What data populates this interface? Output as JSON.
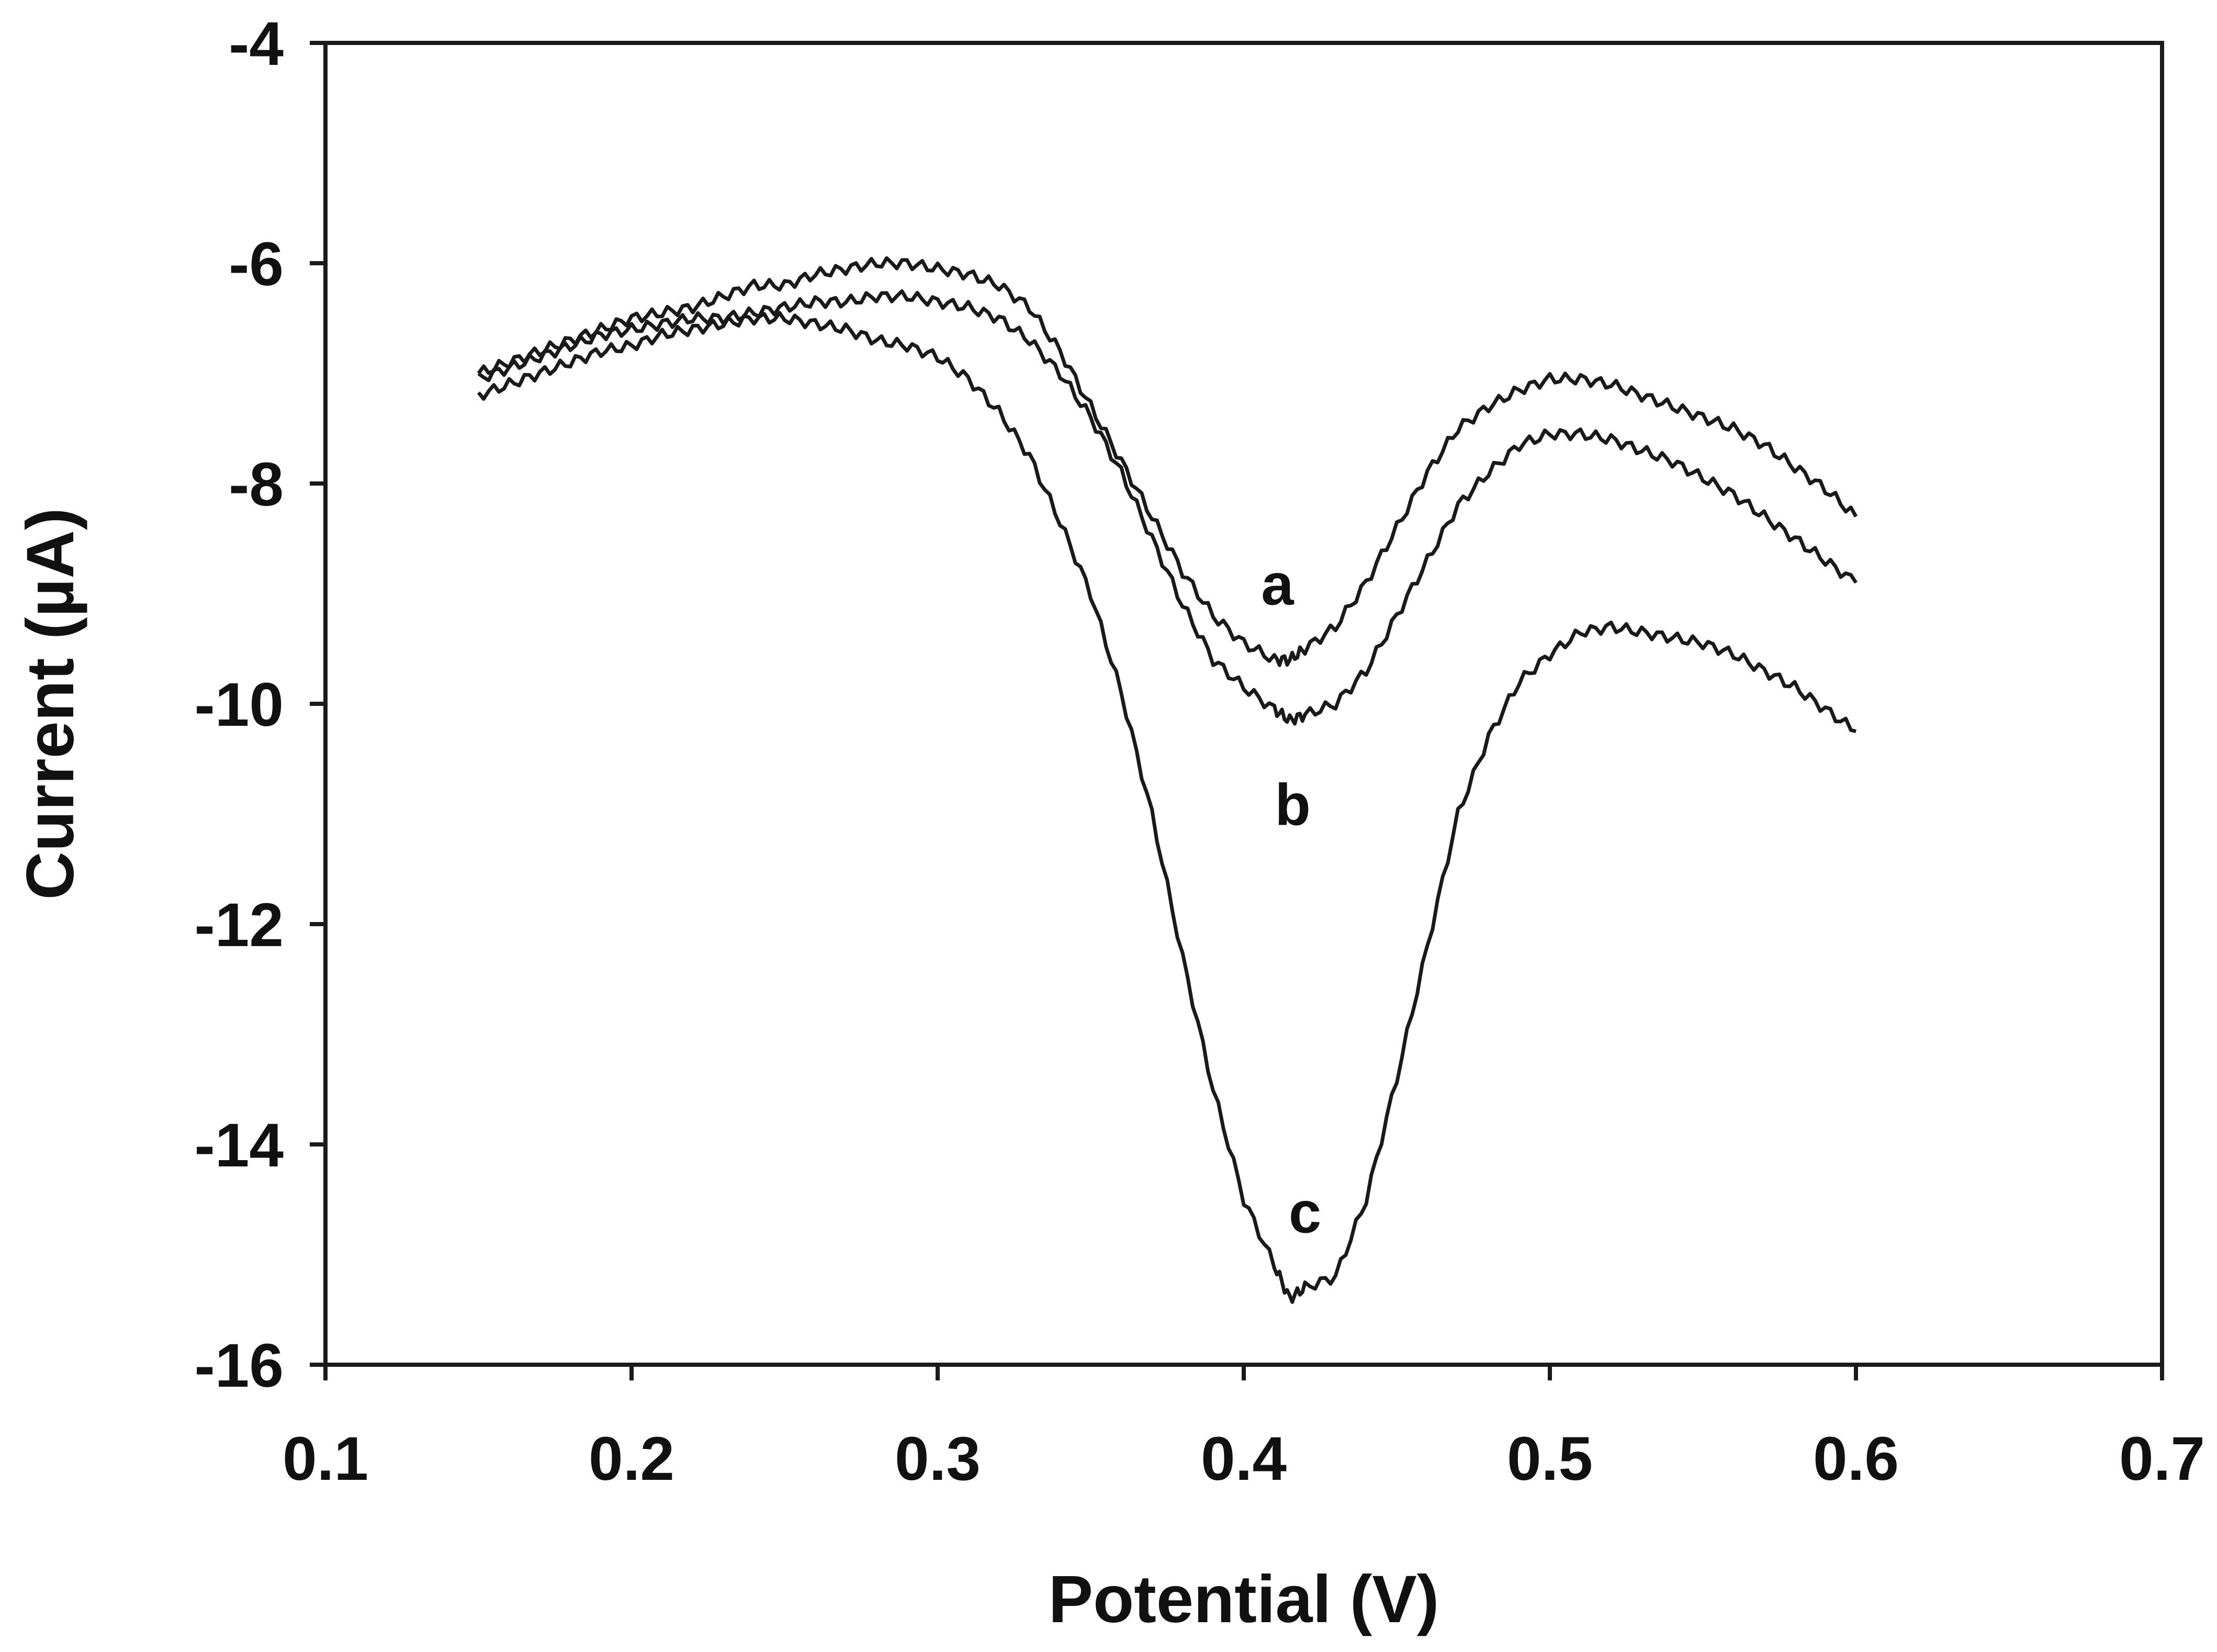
{
  "chart_data": {
    "type": "line",
    "title": "",
    "xlabel": "Potential (V)",
    "ylabel": "Current (µA)",
    "xlim": [
      0.1,
      0.7
    ],
    "ylim": [
      -16,
      -4
    ],
    "x_ticks": [
      0.1,
      0.2,
      0.3,
      0.4,
      0.5,
      0.6,
      0.7
    ],
    "x_tick_labels": [
      "0.1",
      "0.2",
      "0.3",
      "0.4",
      "0.5",
      "0.6",
      "0.7"
    ],
    "y_ticks": [
      -4,
      -6,
      -8,
      -10,
      -12,
      -14,
      -16
    ],
    "y_tick_labels": [
      "-4",
      "-6",
      "-8",
      "-10",
      "-12",
      "-14",
      "-16"
    ],
    "grid": false,
    "line_color": "#1a1a1a",
    "series": [
      {
        "label": "a",
        "label_at": [
          0.411,
          -9.1
        ],
        "x": [
          0.15,
          0.16,
          0.17,
          0.18,
          0.19,
          0.2,
          0.21,
          0.22,
          0.23,
          0.24,
          0.25,
          0.26,
          0.27,
          0.28,
          0.29,
          0.3,
          0.31,
          0.32,
          0.33,
          0.34,
          0.35,
          0.36,
          0.37,
          0.38,
          0.39,
          0.4,
          0.41,
          0.415,
          0.42,
          0.43,
          0.44,
          0.45,
          0.46,
          0.47,
          0.48,
          0.49,
          0.5,
          0.51,
          0.52,
          0.53,
          0.54,
          0.55,
          0.56,
          0.57,
          0.58,
          0.59,
          0.6
        ],
        "y": [
          -7.0,
          -6.9,
          -6.8,
          -6.7,
          -6.6,
          -6.5,
          -6.45,
          -6.4,
          -6.3,
          -6.2,
          -6.2,
          -6.1,
          -6.05,
          -6.0,
          -6.0,
          -6.05,
          -6.1,
          -6.2,
          -6.4,
          -6.8,
          -7.3,
          -7.8,
          -8.3,
          -8.8,
          -9.2,
          -9.45,
          -9.6,
          -9.6,
          -9.5,
          -9.3,
          -8.9,
          -8.4,
          -7.9,
          -7.5,
          -7.3,
          -7.15,
          -7.05,
          -7.05,
          -7.1,
          -7.2,
          -7.3,
          -7.4,
          -7.5,
          -7.65,
          -7.85,
          -8.05,
          -8.3
        ]
      },
      {
        "label": "b",
        "label_at": [
          0.416,
          -11.1
        ],
        "x": [
          0.15,
          0.16,
          0.17,
          0.18,
          0.19,
          0.2,
          0.21,
          0.22,
          0.23,
          0.24,
          0.25,
          0.26,
          0.27,
          0.28,
          0.29,
          0.3,
          0.31,
          0.32,
          0.33,
          0.34,
          0.35,
          0.36,
          0.37,
          0.38,
          0.39,
          0.4,
          0.41,
          0.415,
          0.42,
          0.43,
          0.44,
          0.45,
          0.46,
          0.47,
          0.48,
          0.49,
          0.5,
          0.51,
          0.52,
          0.53,
          0.54,
          0.55,
          0.56,
          0.57,
          0.58,
          0.59,
          0.6
        ],
        "y": [
          -7.05,
          -6.95,
          -6.85,
          -6.75,
          -6.65,
          -6.6,
          -6.55,
          -6.5,
          -6.5,
          -6.45,
          -6.4,
          -6.35,
          -6.35,
          -6.3,
          -6.3,
          -6.35,
          -6.4,
          -6.5,
          -6.7,
          -7.0,
          -7.4,
          -7.9,
          -8.5,
          -9.1,
          -9.6,
          -9.85,
          -10.05,
          -10.15,
          -10.1,
          -10.0,
          -9.7,
          -9.2,
          -8.7,
          -8.2,
          -7.9,
          -7.65,
          -7.55,
          -7.55,
          -7.6,
          -7.7,
          -7.8,
          -7.95,
          -8.1,
          -8.3,
          -8.5,
          -8.7,
          -8.9
        ]
      },
      {
        "label": "c",
        "label_at": [
          0.42,
          -14.8
        ],
        "x": [
          0.15,
          0.16,
          0.17,
          0.18,
          0.19,
          0.2,
          0.21,
          0.22,
          0.23,
          0.24,
          0.25,
          0.26,
          0.27,
          0.28,
          0.29,
          0.3,
          0.31,
          0.32,
          0.33,
          0.34,
          0.35,
          0.36,
          0.37,
          0.38,
          0.39,
          0.4,
          0.41,
          0.415,
          0.42,
          0.43,
          0.44,
          0.45,
          0.46,
          0.47,
          0.48,
          0.49,
          0.5,
          0.51,
          0.52,
          0.53,
          0.54,
          0.55,
          0.56,
          0.57,
          0.58,
          0.59,
          0.6
        ],
        "y": [
          -7.2,
          -7.1,
          -7.0,
          -6.9,
          -6.8,
          -6.75,
          -6.65,
          -6.6,
          -6.55,
          -6.5,
          -6.5,
          -6.55,
          -6.6,
          -6.7,
          -6.75,
          -6.85,
          -7.05,
          -7.35,
          -7.75,
          -8.35,
          -9.0,
          -9.9,
          -11.0,
          -12.3,
          -13.5,
          -14.5,
          -15.1,
          -15.4,
          -15.3,
          -15.2,
          -14.5,
          -13.4,
          -12.2,
          -11.0,
          -10.3,
          -9.8,
          -9.55,
          -9.35,
          -9.3,
          -9.35,
          -9.4,
          -9.45,
          -9.55,
          -9.7,
          -9.85,
          -10.05,
          -10.25
        ]
      }
    ]
  }
}
